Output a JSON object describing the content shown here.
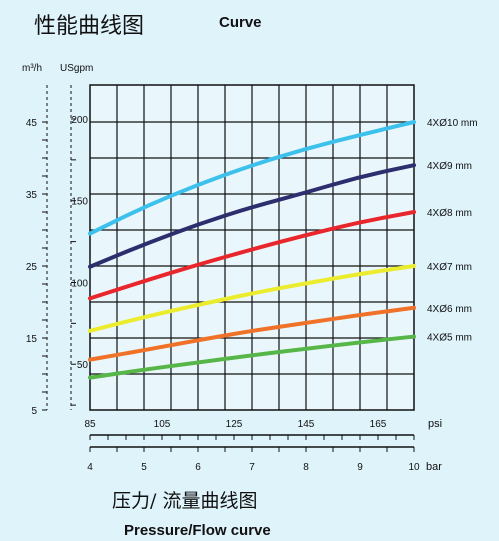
{
  "header": {
    "title_cn": "性能曲线图",
    "title_en": "Curve"
  },
  "footer": {
    "subtitle_cn": "压力/ 流量曲线图",
    "subtitle_en": "Pressure/Flow curve"
  },
  "chart_data": {
    "type": "line",
    "x_primary": {
      "label": "psi",
      "ticks": [
        85,
        105,
        125,
        145,
        165
      ],
      "range": [
        85,
        175
      ]
    },
    "x_secondary": {
      "label": "bar",
      "ticks": [
        4,
        5,
        6,
        7,
        8,
        9,
        10
      ],
      "range": [
        4,
        10
      ]
    },
    "y_primary": {
      "label": "m³/h",
      "ticks": [
        5,
        15,
        25,
        35,
        45
      ],
      "range": [
        5,
        45
      ]
    },
    "y_secondary": {
      "label": "USgpm",
      "ticks": [
        50,
        100,
        150,
        200
      ]
    },
    "grid": true,
    "series": [
      {
        "name": "4XØ10 mm",
        "color": "#3cc0ec",
        "x_bar": [
          4,
          5,
          6,
          7,
          8,
          9,
          10
        ],
        "y": [
          29.5,
          33.2,
          36.3,
          39.0,
          41.3,
          43.2,
          45.0
        ]
      },
      {
        "name": "4XØ9 mm",
        "color": "#2c2e6e",
        "x_bar": [
          4,
          5,
          6,
          7,
          8,
          9,
          10
        ],
        "y": [
          24.9,
          28.0,
          30.8,
          33.2,
          35.2,
          37.4,
          39.0
        ]
      },
      {
        "name": "4XØ8 mm",
        "color": "#e8262b",
        "x_bar": [
          4,
          5,
          6,
          7,
          8,
          9,
          10
        ],
        "y": [
          20.5,
          22.9,
          25.2,
          27.3,
          29.3,
          31.1,
          32.5
        ]
      },
      {
        "name": "4XØ7 mm",
        "color": "#ecec2e",
        "x_bar": [
          4,
          5,
          6,
          7,
          8,
          9,
          10
        ],
        "y": [
          16.0,
          17.9,
          19.6,
          21.2,
          22.6,
          23.9,
          25.0
        ]
      },
      {
        "name": "4XØ6 mm",
        "color": "#f07128",
        "x_bar": [
          4,
          5,
          6,
          7,
          8,
          9,
          10
        ],
        "y": [
          12.0,
          13.3,
          14.7,
          16.0,
          17.1,
          18.2,
          19.2
        ]
      },
      {
        "name": "4XØ5 mm",
        "color": "#56b748",
        "x_bar": [
          4,
          5,
          6,
          7,
          8,
          9,
          10
        ],
        "y": [
          9.5,
          10.6,
          11.6,
          12.6,
          13.5,
          14.4,
          15.2
        ]
      }
    ]
  }
}
